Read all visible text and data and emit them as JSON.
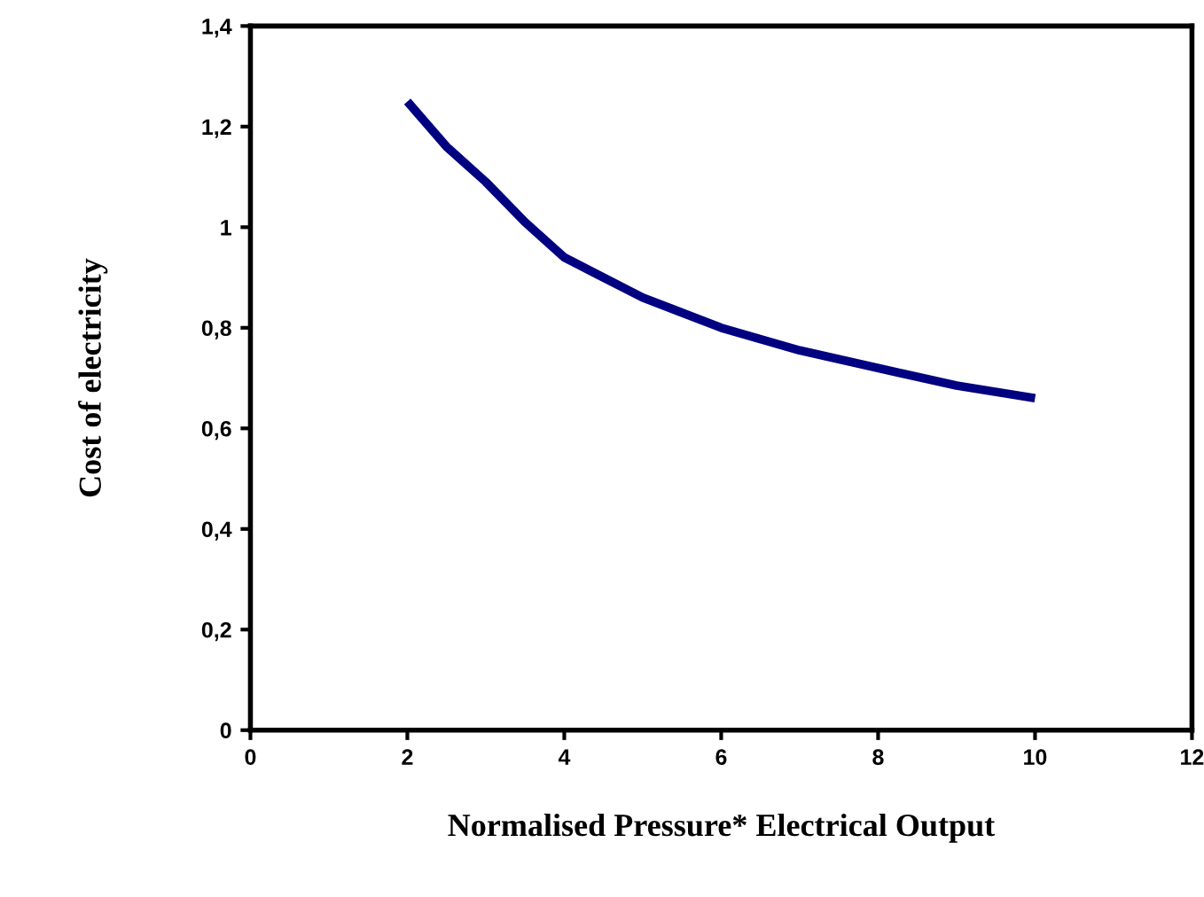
{
  "chart_data": {
    "type": "line",
    "xlabel": "Normalised Pressure* Electrical Output",
    "ylabel": "Cost of electricity",
    "x": [
      2,
      2.5,
      3,
      3.5,
      4,
      4.5,
      5,
      6,
      7,
      8,
      9,
      10
    ],
    "series": [
      {
        "color": "#000080",
        "values": [
          1.25,
          1.16,
          1.09,
          1.01,
          0.94,
          0.9,
          0.86,
          0.8,
          0.755,
          0.72,
          0.685,
          0.66
        ]
      }
    ],
    "xlim": [
      0,
      12
    ],
    "xticks": [
      0,
      2,
      4,
      6,
      8,
      10,
      12
    ],
    "ylim": [
      0,
      1.4
    ],
    "yticks": [
      0,
      {
        "value": 0.2,
        "label": "0,2"
      },
      {
        "value": 0.4,
        "label": "0,4"
      },
      {
        "value": 0.6,
        "label": "0,6"
      },
      {
        "value": 0.8,
        "label": "0,8"
      },
      1,
      {
        "value": 1.2,
        "label": "1,2"
      },
      {
        "value": 1.4,
        "label": "1,4"
      }
    ],
    "grid": false,
    "legend": false,
    "marker": "none",
    "line_style": "solid"
  }
}
